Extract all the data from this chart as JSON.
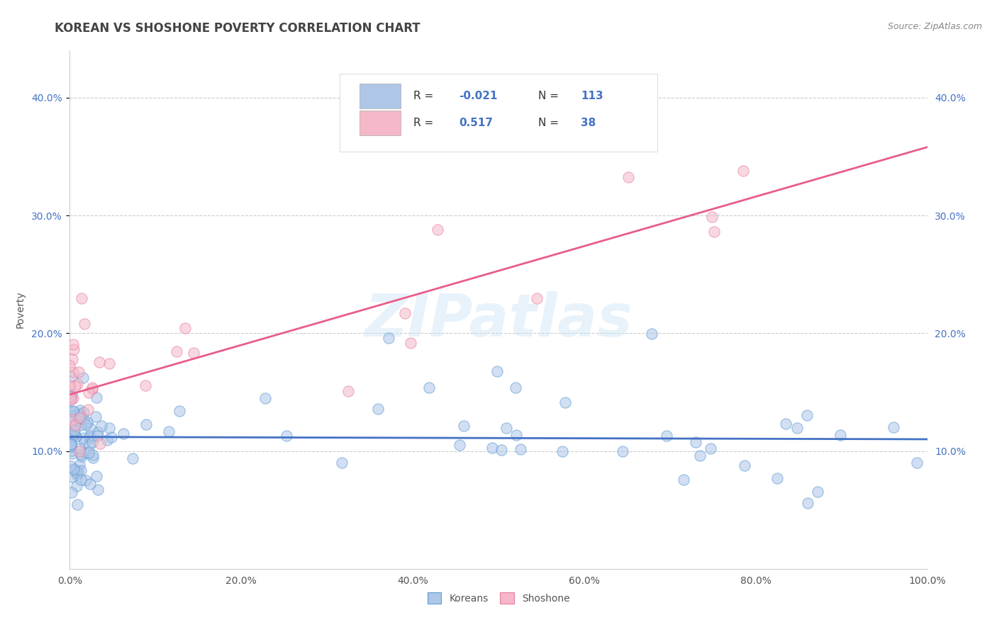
{
  "title": "KOREAN VS SHOSHONE POVERTY CORRELATION CHART",
  "source_text": "Source: ZipAtlas.com",
  "ylabel": "Poverty",
  "watermark": "ZIPatlas",
  "korean_R": -0.021,
  "korean_N": 113,
  "shoshone_R": 0.517,
  "shoshone_N": 38,
  "korean_color": "#aec6e8",
  "korean_edge_color": "#5b9bd5",
  "korean_line_color": "#4472c4",
  "shoshone_color": "#f4b8c8",
  "shoshone_edge_color": "#e87da0",
  "shoshone_line_color": "#e85d8a",
  "xlim": [
    0.0,
    1.0
  ],
  "ylim": [
    0.0,
    0.44
  ],
  "xtick_labels": [
    "0.0%",
    "20.0%",
    "40.0%",
    "60.0%",
    "80.0%",
    "100.0%"
  ],
  "xtick_vals": [
    0.0,
    0.2,
    0.4,
    0.6,
    0.8,
    1.0
  ],
  "ytick_labels": [
    "10.0%",
    "20.0%",
    "30.0%",
    "40.0%"
  ],
  "ytick_vals": [
    0.1,
    0.2,
    0.3,
    0.4
  ],
  "title_fontsize": 12,
  "tick_fontsize": 10,
  "source_fontsize": 9,
  "axis_label_fontsize": 10,
  "background_color": "#ffffff",
  "grid_color": "#cccccc",
  "scatter_size": 120,
  "scatter_alpha": 0.55,
  "korean_line_intercept": 0.112,
  "korean_line_slope": -0.002,
  "shoshone_line_intercept": 0.148,
  "shoshone_line_slope": 0.21
}
